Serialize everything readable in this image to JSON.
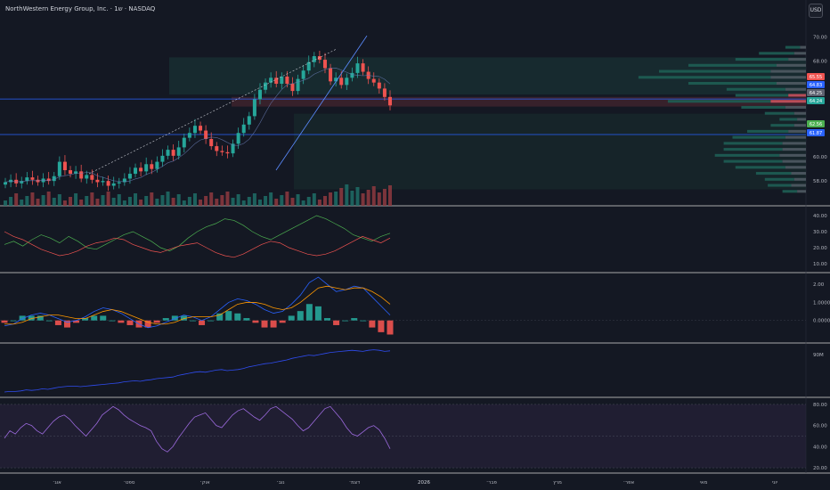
{
  "header": {
    "title": "NorthWestern Energy Group, Inc. · 1ש · NASDAQ",
    "currency": "USD"
  },
  "colors": {
    "background": "#141823",
    "up": "#26a69a",
    "down": "#ef5350",
    "panel_border": "#e0e0e0",
    "trendline": "#5b8cff",
    "di_plus": "#4caf50",
    "di_minus": "#ef5350",
    "macd": "#2962ff",
    "signal": "#ff9800",
    "obv": "#2f4cf0",
    "rsi": "#9c6ade",
    "vp_up": "#1e5e54",
    "vp_down": "#8a3a44",
    "price_label_red": "#ef5350",
    "price_label_blue": "#2962ff",
    "price_label_green": "#4caf50",
    "price_label_teal": "#26a69a"
  },
  "price_axis": {
    "ticks": [
      "70.00",
      "68.00",
      "60.00",
      "58.00"
    ],
    "badges": [
      {
        "text": "65.55",
        "kind": "red"
      },
      {
        "text": "64.83",
        "kind": "blue"
      },
      {
        "text": "64.25",
        "kind": "grey"
      },
      {
        "text": "64.24",
        "kind": "teal"
      },
      {
        "text": "62.56",
        "kind": "green"
      },
      {
        "text": "61.87",
        "kind": "blue"
      }
    ]
  },
  "panels": {
    "dmi_ticks": [
      "40.00",
      "30.00",
      "20.00",
      "10.00"
    ],
    "macd_ticks": [
      "2.00",
      "1.0000",
      "0.0000"
    ],
    "obv_ticks": [
      "90M"
    ],
    "rsi_ticks": [
      "80.00",
      "60.00",
      "40.00",
      "20.00"
    ]
  },
  "time_axis": [
    "אוג׳",
    "ספט׳",
    "אוק׳",
    "נוב׳",
    "דצמ׳",
    "2026",
    "פבר׳",
    "מרץ",
    "אפר׳",
    "מאי",
    "יוני"
  ],
  "chart_data": {
    "type": "candlestick",
    "title": "NorthWestern Energy Group, Inc. · 1ש · NASDAQ",
    "ylim": [
      56.6,
      71.0
    ],
    "close_series": [
      57.9,
      58.1,
      57.8,
      58.0,
      58.3,
      58.1,
      57.9,
      58.2,
      58.0,
      58.4,
      59.6,
      58.9,
      58.6,
      58.8,
      58.2,
      58.5,
      58.1,
      57.9,
      58.0,
      57.6,
      57.8,
      57.9,
      58.2,
      58.6,
      59.1,
      58.8,
      59.4,
      59.0,
      59.6,
      60.1,
      60.6,
      60.1,
      60.8,
      61.6,
      62.0,
      62.6,
      62.2,
      61.5,
      60.9,
      60.5,
      60.4,
      60.3,
      61.1,
      62.0,
      62.7,
      63.4,
      64.8,
      65.6,
      66.2,
      66.6,
      66.1,
      66.7,
      66.1,
      65.5,
      66.5,
      67.2,
      67.9,
      68.4,
      68.1,
      67.4,
      66.3,
      66.6,
      66.0,
      66.6,
      67.0,
      67.8,
      67.1,
      66.5,
      66.2,
      65.7,
      65.0,
      64.3
    ],
    "volume_profile": {
      "price_levels": [
        69.0,
        68.5,
        68.0,
        67.5,
        67.0,
        66.5,
        66.0,
        65.5,
        65.0,
        64.5,
        64.0,
        63.5,
        63.0,
        62.5,
        62.0,
        61.5,
        61.0,
        60.5,
        60.0,
        59.5,
        59.0,
        58.5,
        58.0,
        57.5,
        57.0
      ],
      "up_volume": [
        0.05,
        0.12,
        0.18,
        0.3,
        0.38,
        0.45,
        0.3,
        0.2,
        0.18,
        0.35,
        0.15,
        0.1,
        0.06,
        0.08,
        0.14,
        0.18,
        0.2,
        0.2,
        0.22,
        0.2,
        0.17,
        0.12,
        0.1,
        0.08,
        0.05
      ],
      "down_volume": [
        0.02,
        0.04,
        0.06,
        0.1,
        0.12,
        0.12,
        0.1,
        0.07,
        0.06,
        0.12,
        0.07,
        0.04,
        0.03,
        0.04,
        0.06,
        0.07,
        0.08,
        0.08,
        0.09,
        0.08,
        0.07,
        0.05,
        0.04,
        0.05,
        0.03
      ]
    },
    "indicators": {
      "dmi_plus": [
        22,
        24,
        21,
        25,
        28,
        26,
        23,
        27,
        24,
        20,
        19,
        22,
        25,
        28,
        30,
        27,
        24,
        20,
        18,
        21,
        26,
        30,
        33,
        35,
        38,
        37,
        34,
        30,
        27,
        25,
        28,
        31,
        34,
        37,
        40,
        38,
        35,
        32,
        28,
        26,
        24,
        27,
        29
      ],
      "dmi_minus": [
        30,
        27,
        25,
        22,
        19,
        17,
        15,
        16,
        18,
        21,
        23,
        24,
        26,
        25,
        22,
        20,
        18,
        17,
        19,
        21,
        22,
        23,
        20,
        17,
        15,
        14,
        16,
        19,
        22,
        24,
        23,
        20,
        18,
        16,
        15,
        16,
        18,
        21,
        24,
        27,
        25,
        23,
        26
      ],
      "dmi_ylim": [
        5,
        45
      ],
      "macd": [
        -0.3,
        -0.2,
        0.1,
        0.3,
        0.4,
        0.3,
        0.1,
        -0.1,
        0.0,
        0.2,
        0.5,
        0.7,
        0.6,
        0.4,
        0.1,
        -0.2,
        -0.4,
        -0.3,
        -0.1,
        0.1,
        0.3,
        0.2,
        0.0,
        0.2,
        0.6,
        1.0,
        1.2,
        1.1,
        0.9,
        0.6,
        0.4,
        0.5,
        0.9,
        1.4,
        2.1,
        2.4,
        2.0,
        1.6,
        1.7,
        1.9,
        1.8,
        1.3,
        0.8,
        0.3
      ],
      "signal": [
        -0.2,
        -0.2,
        -0.1,
        0.1,
        0.2,
        0.3,
        0.3,
        0.2,
        0.1,
        0.1,
        0.3,
        0.5,
        0.6,
        0.5,
        0.3,
        0.1,
        -0.1,
        -0.2,
        -0.2,
        -0.1,
        0.1,
        0.2,
        0.2,
        0.2,
        0.3,
        0.6,
        0.9,
        1.0,
        1.0,
        0.9,
        0.7,
        0.6,
        0.7,
        1.0,
        1.4,
        1.8,
        1.9,
        1.8,
        1.7,
        1.8,
        1.8,
        1.6,
        1.3,
        0.9
      ],
      "macd_ylim": [
        -1.2,
        2.6
      ],
      "obv": [
        20,
        21,
        21,
        22,
        24,
        23,
        24,
        26,
        25,
        27,
        29,
        30,
        31,
        31,
        30,
        31,
        32,
        33,
        34,
        35,
        36,
        37,
        39,
        40,
        41,
        40,
        42,
        43,
        45,
        46,
        47,
        48,
        51,
        53,
        55,
        57,
        58,
        57,
        59,
        61,
        62,
        60,
        61,
        62,
        64,
        67,
        69,
        71,
        73,
        74,
        76,
        78,
        80,
        83,
        85,
        87,
        89,
        88,
        90,
        92,
        94,
        95,
        96,
        97,
        98,
        97,
        96,
        98,
        99,
        98,
        96,
        97
      ],
      "obv_ylim": [
        10,
        110
      ],
      "rsi": [
        48,
        55,
        52,
        58,
        62,
        60,
        55,
        52,
        58,
        64,
        68,
        70,
        66,
        60,
        55,
        50,
        56,
        62,
        70,
        74,
        78,
        75,
        70,
        66,
        63,
        60,
        58,
        55,
        45,
        38,
        35,
        40,
        48,
        55,
        62,
        68,
        70,
        72,
        66,
        60,
        58,
        64,
        70,
        74,
        76,
        72,
        68,
        65,
        70,
        76,
        78,
        74,
        70,
        66,
        60,
        55,
        58,
        64,
        70,
        76,
        78,
        72,
        66,
        58,
        52,
        50,
        54,
        58,
        60,
        56,
        48,
        38
      ],
      "rsi_ylim": [
        15,
        85
      ]
    }
  }
}
